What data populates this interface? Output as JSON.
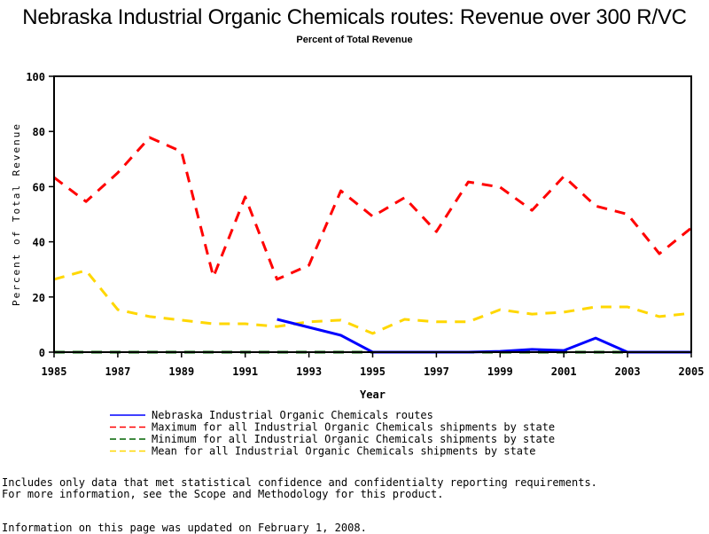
{
  "page": {
    "footer_lines": [
      "Includes only data that met statistical confidence and confidentialty reporting requirements.",
      "For more information, see the Scope and Methodology for this product."
    ],
    "updated_note": "Information on this page was updated on February 1, 2008."
  },
  "chart_data": {
    "type": "line",
    "title": "Nebraska Industrial Organic Chemicals routes: Revenue over 300 R/VC",
    "subtitle": "Percent of Total Revenue",
    "xlabel": "Year",
    "ylabel": "Percent of Total Revenue",
    "xlim": [
      1985,
      2005
    ],
    "ylim": [
      0,
      100
    ],
    "x_ticks": [
      1985,
      1987,
      1989,
      1991,
      1993,
      1995,
      1997,
      1999,
      2001,
      2003,
      2005
    ],
    "y_ticks": [
      0,
      20,
      40,
      60,
      80,
      100
    ],
    "grid": false,
    "legend_position": "bottom",
    "x": [
      1985,
      1986,
      1987,
      1988,
      1989,
      1990,
      1991,
      1992,
      1993,
      1994,
      1995,
      1996,
      1997,
      1998,
      1999,
      2000,
      2001,
      2002,
      2003,
      2004,
      2005
    ],
    "series": [
      {
        "name": "Nebraska Industrial Organic Chemicals routes",
        "color": "#0000ff",
        "style": "solid",
        "values": [
          null,
          null,
          null,
          null,
          null,
          null,
          null,
          11.9,
          9.0,
          6.1,
          0,
          0,
          0,
          0,
          0.3,
          1.0,
          0.6,
          5.1,
          0,
          0,
          0
        ]
      },
      {
        "name": "Maximum for all Industrial Organic Chemicals shipments by state",
        "color": "#ff0000",
        "style": "dashed",
        "values": [
          63.3,
          54.6,
          65.0,
          77.8,
          72.7,
          27.3,
          56.3,
          26.4,
          31.5,
          58.5,
          49.2,
          56.0,
          43.7,
          61.7,
          59.8,
          51.4,
          63.7,
          53.0,
          50.0,
          35.7,
          45.0
        ]
      },
      {
        "name": "Minimum for all Industrial Organic Chemicals shipments by state",
        "color": "#006400",
        "style": "dashed",
        "values": [
          0,
          0,
          0,
          0,
          0,
          0,
          0,
          0,
          0,
          0,
          0,
          0,
          0,
          0,
          0,
          0,
          0,
          0,
          0,
          0,
          0
        ]
      },
      {
        "name": "Mean for all Industrial Organic Chemicals shipments by state",
        "color": "#ffd700",
        "style": "dashed",
        "values": [
          26.4,
          29.6,
          15.4,
          12.9,
          11.6,
          10.3,
          10.3,
          9.3,
          11.0,
          11.6,
          6.8,
          11.9,
          11.0,
          11.0,
          15.4,
          13.8,
          14.5,
          16.4,
          16.4,
          12.9,
          14.1
        ]
      }
    ]
  }
}
